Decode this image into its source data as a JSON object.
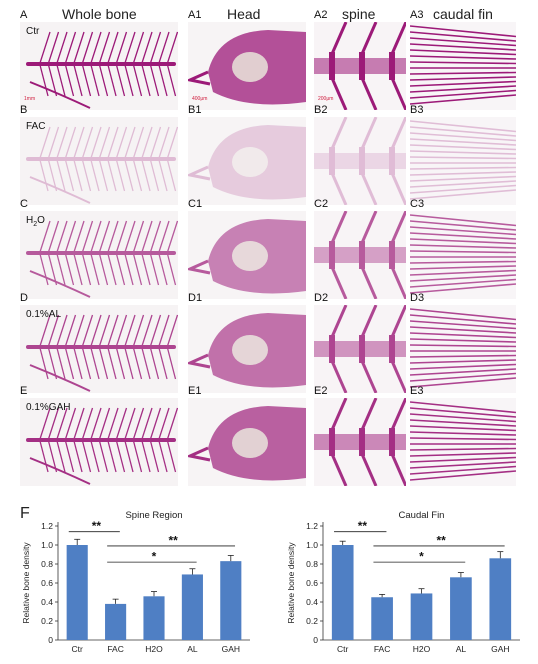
{
  "figure": {
    "column_headers": [
      "Whole bone",
      "Head",
      "spine",
      "caudal fin"
    ],
    "rows": [
      {
        "labels": [
          "A",
          "A1",
          "A2",
          "A3"
        ],
        "group": "Ctr",
        "intensity": 1.0
      },
      {
        "labels": [
          "B",
          "B1",
          "B2",
          "B3"
        ],
        "group": "FAC",
        "intensity": 0.25
      },
      {
        "labels": [
          "C",
          "C1",
          "C2",
          "C3"
        ],
        "group": "H2O",
        "intensity": 0.7
      },
      {
        "labels": [
          "D",
          "D1",
          "D2",
          "D3"
        ],
        "group": "0.1%AL",
        "intensity": 0.8
      },
      {
        "labels": [
          "E",
          "E1",
          "E2",
          "E3"
        ],
        "group": "0.1%GAH",
        "intensity": 0.9
      }
    ],
    "scale_bars": [
      "1mm",
      "400μm",
      "200μm"
    ],
    "panel_f_label": "F",
    "stain_color": "#9c1a78"
  },
  "chart_data": [
    {
      "type": "bar",
      "title": "Spine Region",
      "categories": [
        "Ctr",
        "FAC",
        "H2O",
        "AL",
        "GAH"
      ],
      "values": [
        1.0,
        0.38,
        0.46,
        0.69,
        0.83
      ],
      "errors": [
        0.06,
        0.05,
        0.05,
        0.06,
        0.06
      ],
      "ylabel": "Relative bone density",
      "xlabel": "",
      "ylim": [
        0,
        1.2
      ],
      "yticks": [
        "0",
        "0.2",
        "0.4",
        "0.6",
        "0.8",
        "1.0",
        "1.2"
      ],
      "bar_color": "#4f7fc4",
      "significance": [
        {
          "from": 0,
          "to": 1,
          "label": "**"
        },
        {
          "from": 1,
          "to": 4,
          "label": "**"
        },
        {
          "from": 1,
          "to": 3,
          "label": "*"
        }
      ]
    },
    {
      "type": "bar",
      "title": "Caudal Fin",
      "categories": [
        "Ctr",
        "FAC",
        "H2O",
        "AL",
        "GAH"
      ],
      "values": [
        1.0,
        0.45,
        0.49,
        0.66,
        0.86
      ],
      "errors": [
        0.04,
        0.03,
        0.05,
        0.05,
        0.07
      ],
      "ylabel": "Relative bone density",
      "xlabel": "",
      "ylim": [
        0,
        1.2
      ],
      "yticks": [
        "0",
        "0.2",
        "0.4",
        "0.6",
        "0.8",
        "1.0",
        "1.2"
      ],
      "bar_color": "#4f7fc4",
      "significance": [
        {
          "from": 0,
          "to": 1,
          "label": "**"
        },
        {
          "from": 1,
          "to": 4,
          "label": "**"
        },
        {
          "from": 1,
          "to": 3,
          "label": "*"
        }
      ]
    }
  ]
}
